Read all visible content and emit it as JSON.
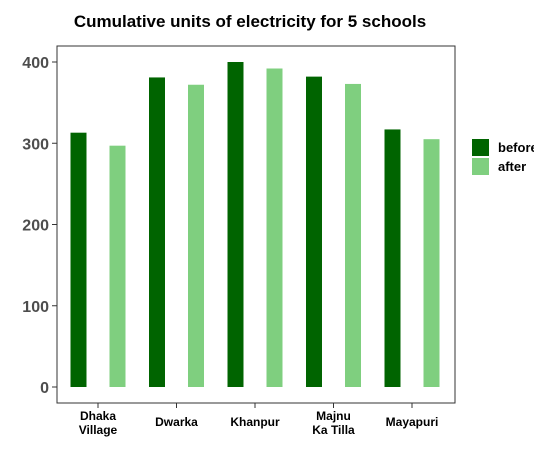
{
  "chart_data": {
    "type": "bar",
    "title": "Cumulative units of electricity for 5 schools",
    "xlabel": "",
    "ylabel": "",
    "categories": [
      "Dhaka Village",
      "Dwarka",
      "Khanpur",
      "Majnu Ka Tilla",
      "Mayapuri"
    ],
    "category_lines": [
      [
        "Dhaka",
        "Village"
      ],
      [
        "Dwarka"
      ],
      [
        "Khanpur"
      ],
      [
        "Majnu",
        "Ka Tilla"
      ],
      [
        "Mayapuri"
      ]
    ],
    "series": [
      {
        "name": "before",
        "color": "#006400",
        "values": [
          313,
          381,
          400,
          382,
          317
        ]
      },
      {
        "name": "after",
        "color": "#7fcf7f",
        "values": [
          297,
          372,
          392,
          373,
          305
        ]
      }
    ],
    "ylim": [
      0,
      400
    ],
    "yticks": [
      0,
      100,
      200,
      300,
      400
    ],
    "grid": false,
    "legend": "right"
  }
}
